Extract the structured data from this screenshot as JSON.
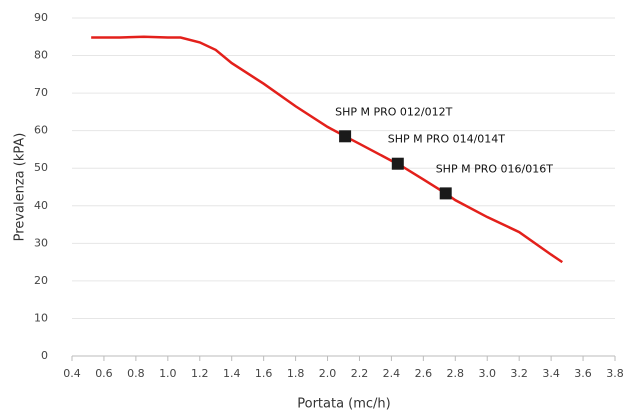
{
  "chart_data": {
    "type": "line",
    "xlabel": "Portata (mc/h)",
    "ylabel": "Prevalenza (kPA)",
    "xlim": [
      0.4,
      3.8
    ],
    "ylim": [
      0,
      90
    ],
    "xticks": [
      0.4,
      0.6,
      0.8,
      {
        "value": 1,
        "label": "1.0"
      },
      1.2,
      1.4,
      1.6,
      1.8,
      {
        "value": 2,
        "label": "2.0"
      },
      2.2,
      2.4,
      2.6,
      2.8,
      {
        "value": 3,
        "label": "3.0"
      },
      3.2,
      3.4,
      3.6,
      3.8
    ],
    "yticks": [
      0,
      10,
      20,
      30,
      40,
      50,
      60,
      70,
      80,
      90
    ],
    "grid": true,
    "series": [
      {
        "color": "#e3201b",
        "x": [
          0.52,
          0.7,
          0.85,
          1.0,
          1.08,
          1.2,
          1.3,
          1.4,
          1.6,
          1.8,
          2.0,
          2.11,
          2.2,
          2.4,
          2.44,
          2.6,
          2.74,
          2.8,
          3.0,
          3.2,
          3.4,
          3.47
        ],
        "values": [
          84.8,
          84.8,
          85,
          84.8,
          84.8,
          83.5,
          81.5,
          78,
          72.5,
          66.5,
          61,
          58.5,
          56.5,
          52,
          51.2,
          47,
          43.3,
          41.5,
          37,
          33,
          27,
          25
        ]
      }
    ],
    "markers": {
      "color": "#1a1a1a",
      "x": [
        2.11,
        2.44,
        2.74
      ],
      "values": [
        58.5,
        51.2,
        43.3
      ],
      "labels": [
        "SHP M PRO 012/012T",
        "SHP M PRO 014/014T",
        "SHP M PRO 016/016T"
      ]
    }
  }
}
